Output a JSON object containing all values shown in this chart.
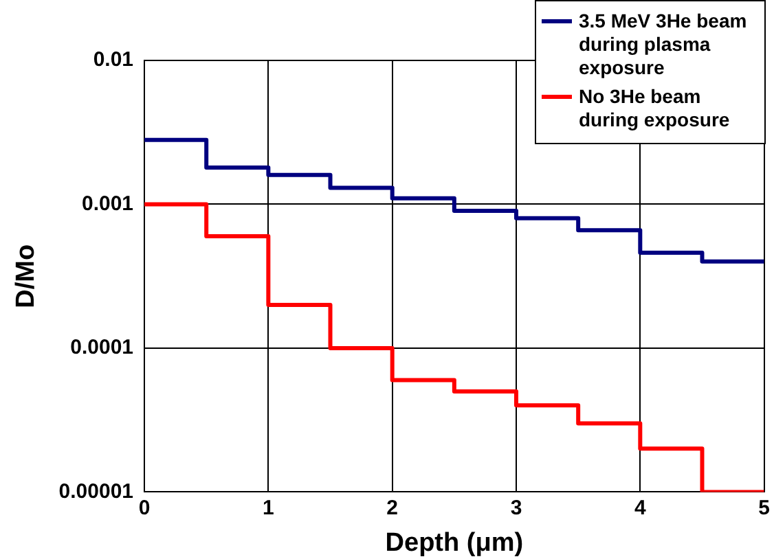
{
  "chart_data": {
    "type": "step",
    "xlabel": "Depth (μm)",
    "ylabel": "D/Mo",
    "x": [
      0,
      0.5,
      1,
      1.5,
      2,
      2.5,
      3,
      3.5,
      4,
      4.5,
      5
    ],
    "series": [
      {
        "name": "3.5 MeV 3He beam during plasma exposure",
        "color": "#000080",
        "values": [
          0.0028,
          0.0018,
          0.0016,
          0.0013,
          0.0011,
          0.0009,
          0.0008,
          0.00066,
          0.00046,
          0.0004,
          0.0004
        ]
      },
      {
        "name": "No 3He beam during exposure",
        "color": "#ff0000",
        "values": [
          0.001,
          0.0006,
          0.0002,
          0.0001,
          6e-05,
          5e-05,
          4e-05,
          3e-05,
          2e-05,
          1e-05,
          1e-05
        ]
      }
    ],
    "xlim": [
      0,
      5
    ],
    "xticks": [
      0,
      1,
      2,
      3,
      4,
      5
    ],
    "ylim": [
      1e-05,
      0.01
    ],
    "yticks": [
      {
        "value": 1e-05,
        "label": "0.00001"
      },
      {
        "value": 0.0001,
        "label": "0.0001"
      },
      {
        "value": 0.001,
        "label": "0.001"
      },
      {
        "value": 0.01,
        "label": "0.01"
      }
    ],
    "log": "y",
    "grid": true,
    "legend": "top right",
    "marker": "none",
    "line_style": "solid"
  }
}
